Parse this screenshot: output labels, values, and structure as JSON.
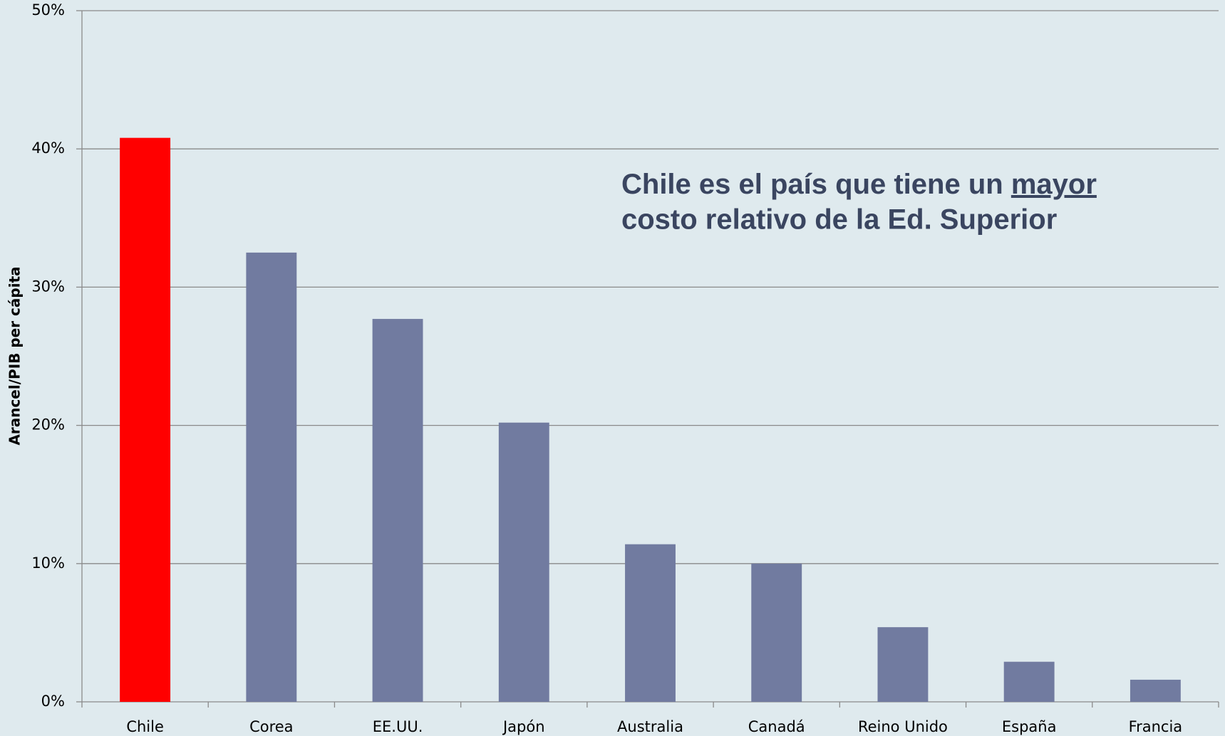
{
  "chart_data": {
    "type": "bar",
    "ylabel": "Arancel/PIB per cápita",
    "annotation": [
      "Chile es el país que tiene un",
      "mayor",
      "costo relativo de la Ed. Superior"
    ],
    "categories": [
      "Chile",
      "Corea",
      "EE.UU.",
      "Japón",
      "Australia",
      "Canadá",
      "Reino Unido",
      "España",
      "Francia"
    ],
    "values": [
      40.8,
      32.5,
      27.7,
      20.2,
      11.4,
      10.0,
      5.4,
      2.9,
      1.6
    ],
    "colors": [
      "#ff0000",
      "#717ba0",
      "#717ba0",
      "#717ba0",
      "#717ba0",
      "#717ba0",
      "#717ba0",
      "#717ba0",
      "#717ba0"
    ],
    "ylim": [
      0,
      50
    ],
    "yticks": [
      {
        "value": 0,
        "label": "0%"
      },
      {
        "value": 10,
        "label": "10%"
      },
      {
        "value": 20,
        "label": "20%"
      },
      {
        "value": 30,
        "label": "30%"
      },
      {
        "value": 40,
        "label": "40%"
      },
      {
        "value": 50,
        "label": "50%"
      }
    ],
    "grid": true
  }
}
